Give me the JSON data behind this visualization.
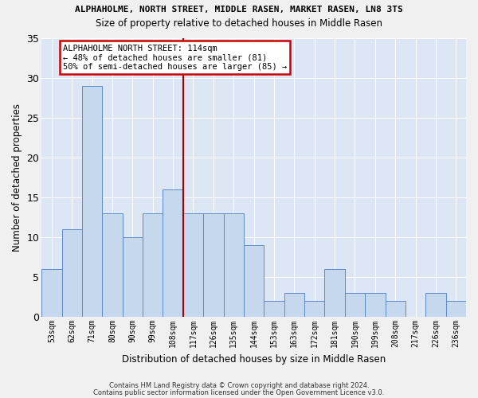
{
  "title1": "ALPHAHOLME, NORTH STREET, MIDDLE RASEN, MARKET RASEN, LN8 3TS",
  "title2": "Size of property relative to detached houses in Middle Rasen",
  "xlabel": "Distribution of detached houses by size in Middle Rasen",
  "ylabel": "Number of detached properties",
  "categories": [
    "53sqm",
    "62sqm",
    "71sqm",
    "80sqm",
    "90sqm",
    "99sqm",
    "108sqm",
    "117sqm",
    "126sqm",
    "135sqm",
    "144sqm",
    "153sqm",
    "163sqm",
    "172sqm",
    "181sqm",
    "190sqm",
    "199sqm",
    "208sqm",
    "217sqm",
    "226sqm",
    "236sqm"
  ],
  "values": [
    6,
    11,
    29,
    13,
    10,
    13,
    16,
    13,
    13,
    13,
    9,
    2,
    3,
    2,
    6,
    3,
    3,
    2,
    0,
    3,
    2
  ],
  "bar_color": "#c5d8ee",
  "bar_edge_color": "#5b8cc8",
  "background_color": "#dce6f4",
  "grid_color": "#ffffff",
  "vline_index": 7,
  "vline_color": "#aa0000",
  "annotation_text": "ALPHAHOLME NORTH STREET: 114sqm\n← 48% of detached houses are smaller (81)\n50% of semi-detached houses are larger (85) →",
  "annotation_box_facecolor": "#ffffff",
  "annotation_box_edgecolor": "#cc0000",
  "ylim": [
    0,
    35
  ],
  "yticks": [
    0,
    5,
    10,
    15,
    20,
    25,
    30,
    35
  ],
  "footer1": "Contains HM Land Registry data © Crown copyright and database right 2024.",
  "footer2": "Contains public sector information licensed under the Open Government Licence v3.0.",
  "fig_facecolor": "#f0f0f0"
}
